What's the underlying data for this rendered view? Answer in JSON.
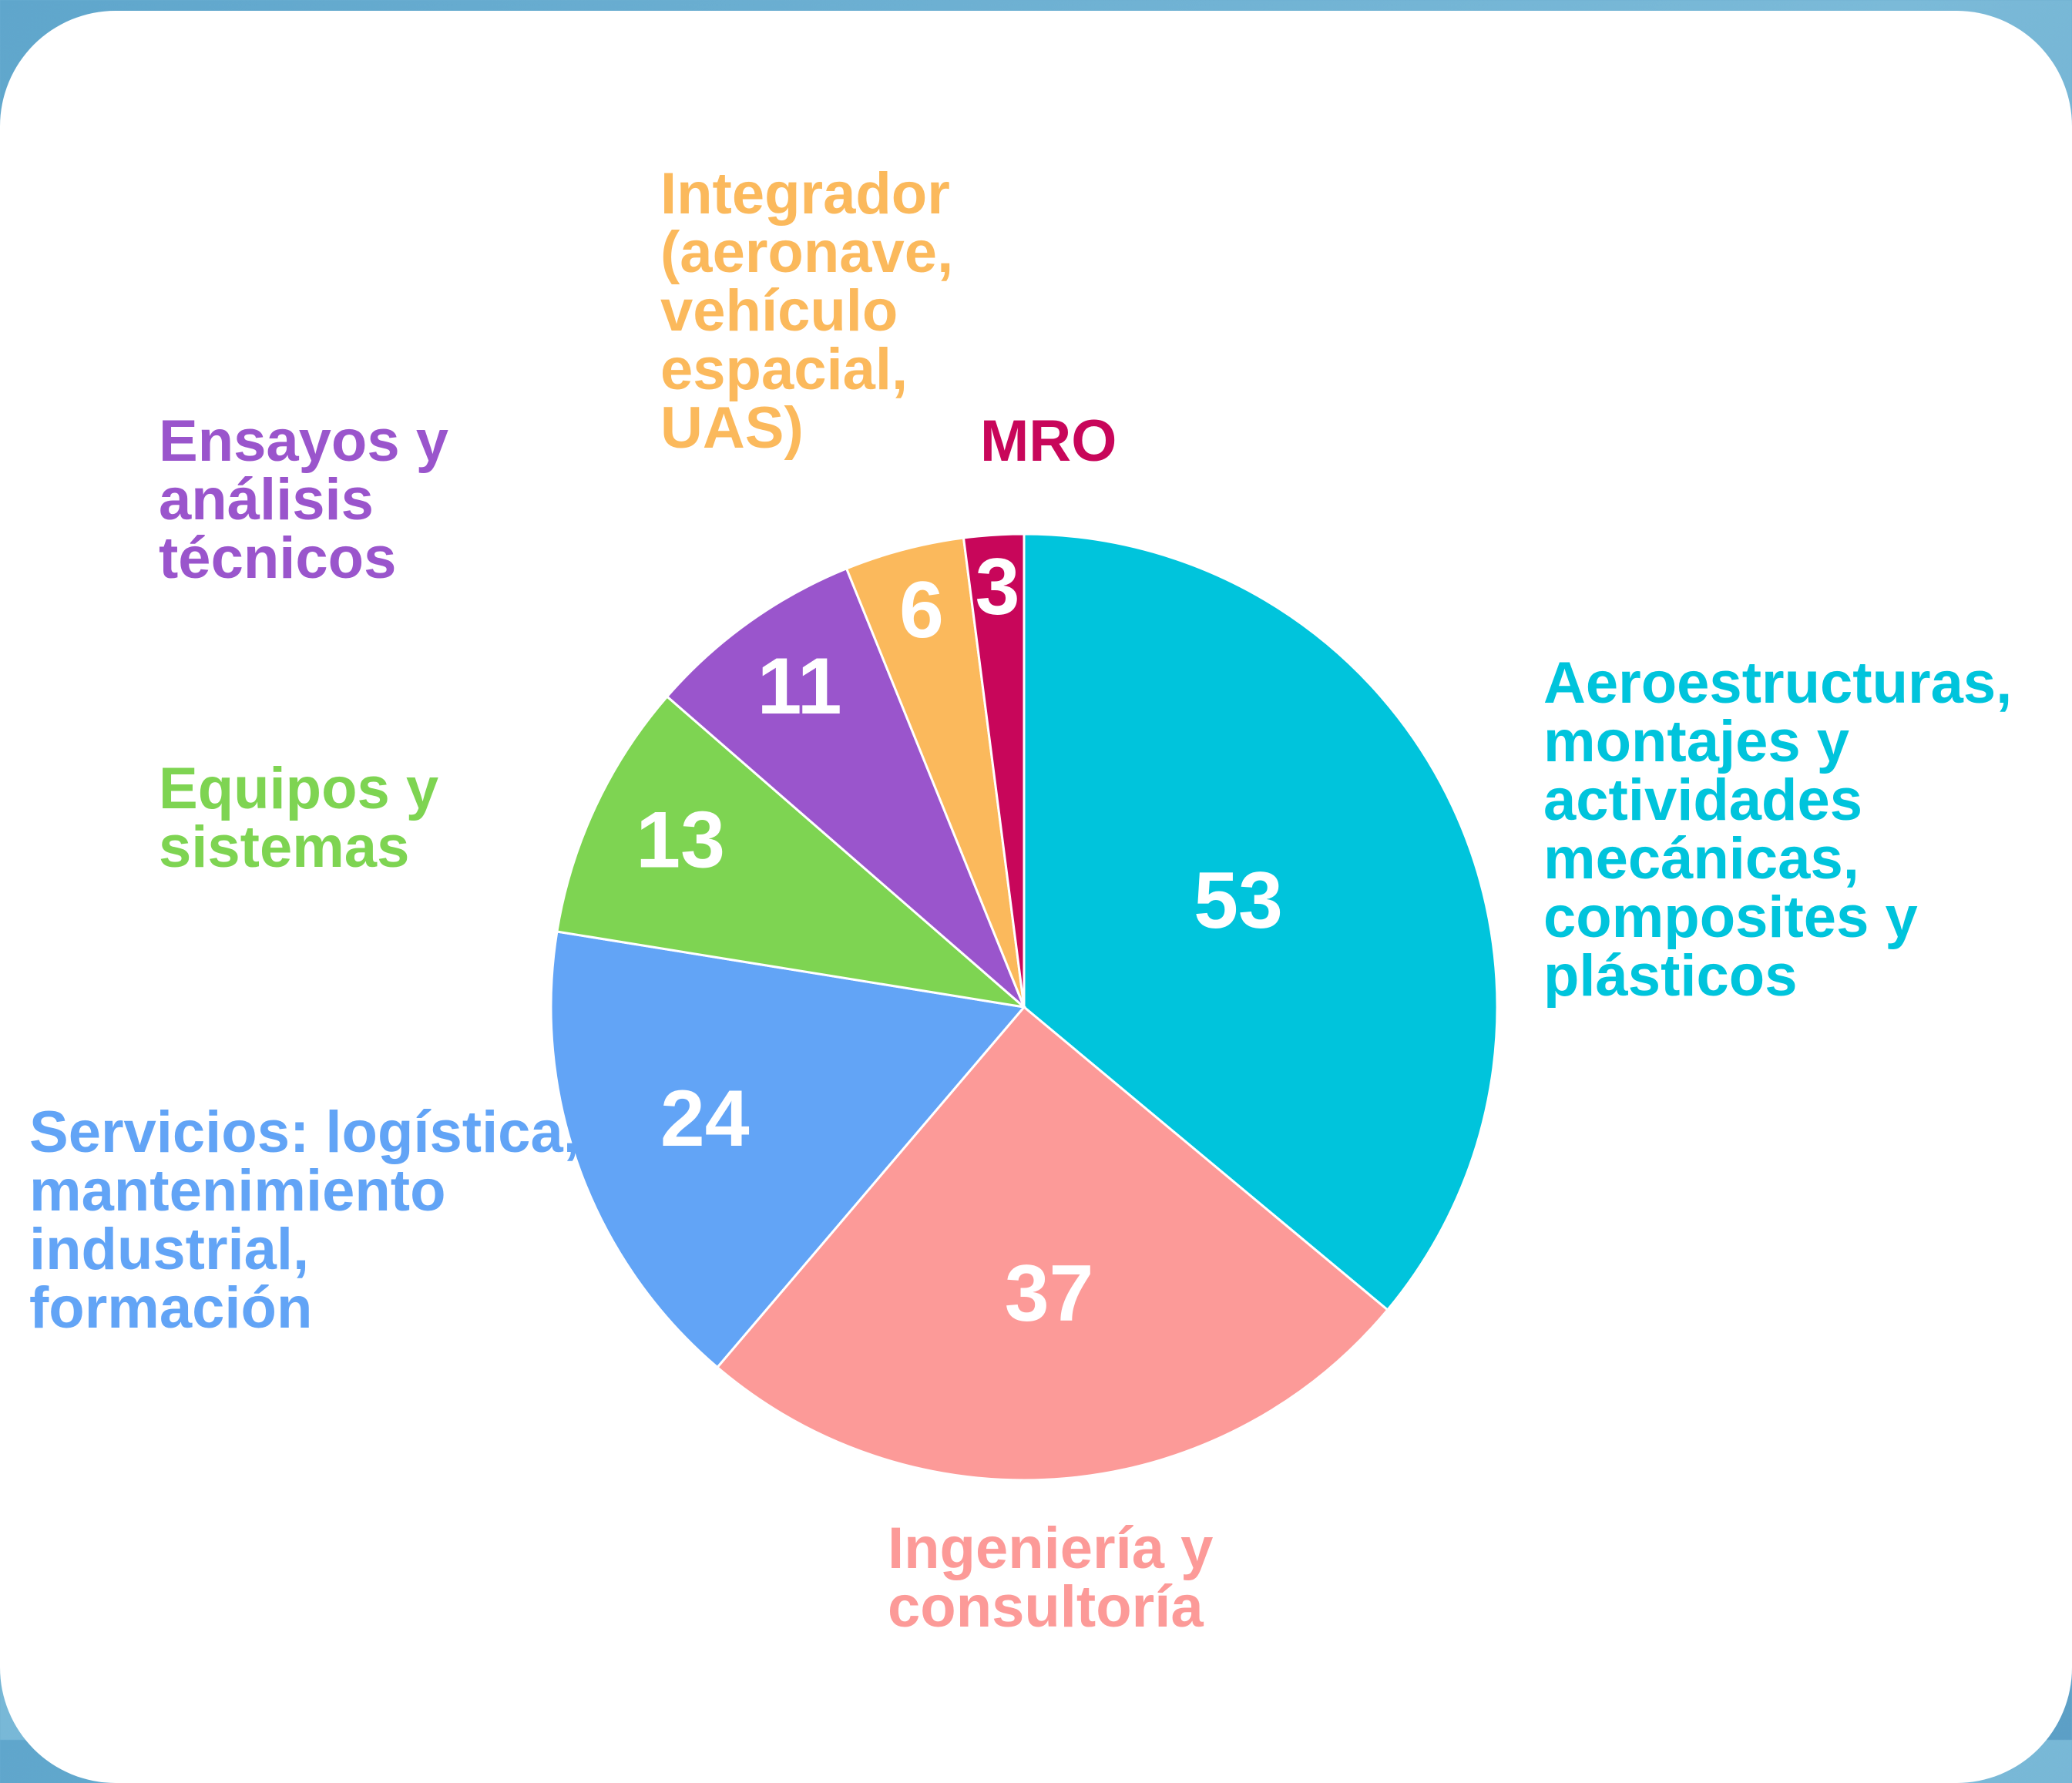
{
  "chart_data": {
    "type": "pie",
    "categories": [
      "Aeroestructuras,\nmontajes y\nactividades\nmecánicas,\ncomposites y\nplásticos",
      "Ingeniería y\nconsultoría",
      "Servicios: logística,\nmantenimiento\nindustrial,\nformación",
      "Equipos y\nsistemas",
      "Ensayos y\nanálisis\ntécnicos",
      "Integrador\n(aeronave,\nvehículo\nespacial,\nUAS)",
      "MRO"
    ],
    "values": [
      53,
      37,
      24,
      13,
      11,
      6,
      3
    ],
    "colors": [
      "#00c4dc",
      "#fc9a98",
      "#62a4f6",
      "#7ed452",
      "#9a55cc",
      "#fbb95c",
      "#c8065a"
    ]
  }
}
